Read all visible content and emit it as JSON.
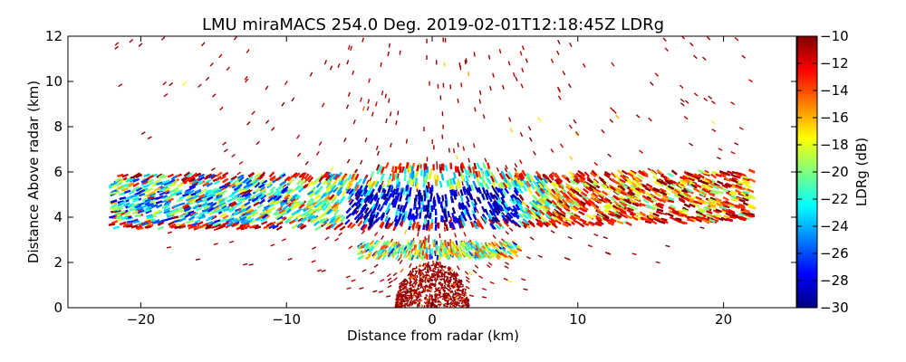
{
  "chart_data": {
    "type": "heatmap",
    "title": "LMU miraMACS 254.0 Deg. 2019-02-01T12:18:45Z  LDRg",
    "xlabel": "Distance from radar (km)",
    "ylabel": "Distance Above radar  (km)",
    "xlim": [
      -25,
      25
    ],
    "ylim": [
      0,
      12
    ],
    "x_ticks": [
      -20,
      -10,
      0,
      10,
      20
    ],
    "y_ticks": [
      0,
      2,
      4,
      6,
      8,
      10,
      12
    ],
    "x_tick_labels": [
      "−20",
      "−10",
      "0",
      "10",
      "20"
    ],
    "y_tick_labels": [
      "0",
      "2",
      "4",
      "6",
      "8",
      "10",
      "12"
    ],
    "colorbar": {
      "label": "LDRg (dB)",
      "range": [
        -30,
        -10
      ],
      "ticks": [
        -10,
        -12,
        -14,
        -16,
        -18,
        -20,
        -22,
        -24,
        -26,
        -28,
        -30
      ],
      "tick_labels": [
        "−10",
        "−12",
        "−14",
        "−16",
        "−18",
        "−20",
        "−22",
        "−24",
        "−26",
        "−28",
        "−30"
      ],
      "colormap": "jet",
      "colors": [
        "#00007f",
        "#0000ff",
        "#007fff",
        "#00ffff",
        "#7fff7f",
        "#ffff00",
        "#ff7f00",
        "#ff0000",
        "#7f0000"
      ]
    },
    "scan_region": {
      "x_range_km": [
        -22,
        22
      ],
      "max_height_km": 12
    },
    "features": [
      {
        "name": "main layer",
        "x_range": [
          -22,
          22
        ],
        "y_range": [
          3.0,
          6.5
        ],
        "ldr_typical": -21
      },
      {
        "name": "central low-LDR core",
        "x_range": [
          -6,
          6
        ],
        "y_range": [
          3.5,
          5.4
        ],
        "ldr_typical": -27
      },
      {
        "name": "lower thin layer",
        "x_range": [
          -5,
          6
        ],
        "y_range": [
          2.2,
          2.9
        ],
        "ldr_typical": -18
      },
      {
        "name": "near-radar clutter",
        "x_range": [
          -2.5,
          2.5
        ],
        "y_range": [
          0,
          2
        ],
        "ldr_typical": -10
      },
      {
        "name": "upper noise",
        "x_range": [
          -20,
          20
        ],
        "y_range": [
          6.5,
          12
        ],
        "ldr_typical": -10
      }
    ]
  }
}
